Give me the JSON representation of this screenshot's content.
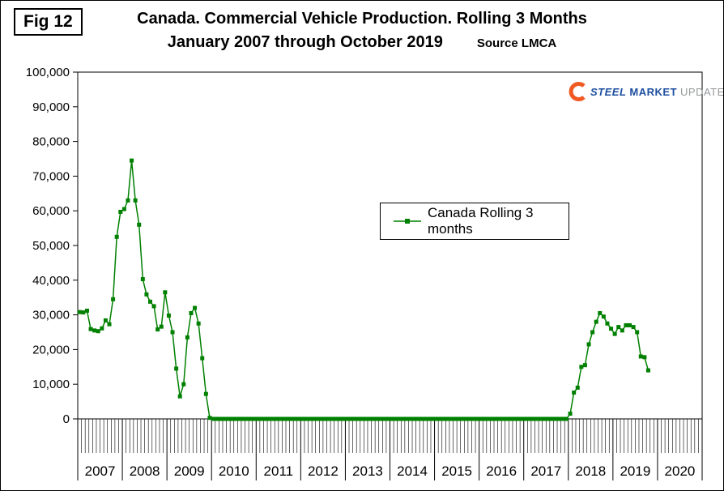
{
  "figure": {
    "label": "Fig 12"
  },
  "title": {
    "line1": "Canada. Commercial Vehicle Production. Rolling 3 Months",
    "line2": "January 2007 through October 2019",
    "source": "Source LMCA"
  },
  "logo": {
    "steel": "STEEL",
    "market": "MARKET",
    "update": "UPDATE",
    "orange": "#f05a22",
    "blue": "#1e4fa0",
    "gray": "#97999b"
  },
  "legend": {
    "label": "Canada Rolling 3 months"
  },
  "chart_data": {
    "type": "line",
    "title": "Canada. Commercial Vehicle Production. Rolling 3 Months January 2007 through October 2019",
    "series_name": "Canada Rolling 3 months",
    "color": "#008000",
    "marker": "square",
    "x_start": "2007-01",
    "x_end": "2019-10",
    "x_years": [
      "2007",
      "2008",
      "2009",
      "2010",
      "2011",
      "2012",
      "2013",
      "2014",
      "2015",
      "2016",
      "2017",
      "2018",
      "2019",
      "2020"
    ],
    "ylim": [
      0,
      100000
    ],
    "ytick_step": 10000,
    "grid": false,
    "legend_position": "center-inside",
    "values": [
      30800,
      30700,
      31200,
      25900,
      25500,
      25300,
      26100,
      28400,
      27300,
      34500,
      52500,
      59700,
      60500,
      63000,
      74500,
      63000,
      56000,
      40300,
      35900,
      33800,
      32500,
      25800,
      26600,
      36500,
      29800,
      25000,
      14500,
      6500,
      10000,
      23500,
      30500,
      32000,
      27500,
      17500,
      7200,
      300,
      0,
      0,
      0,
      0,
      0,
      0,
      0,
      0,
      0,
      0,
      0,
      0,
      0,
      0,
      0,
      0,
      0,
      0,
      0,
      0,
      0,
      0,
      0,
      0,
      0,
      0,
      0,
      0,
      0,
      0,
      0,
      0,
      0,
      0,
      0,
      0,
      0,
      0,
      0,
      0,
      0,
      0,
      0,
      0,
      0,
      0,
      0,
      0,
      0,
      0,
      0,
      0,
      0,
      0,
      0,
      0,
      0,
      0,
      0,
      0,
      0,
      0,
      0,
      0,
      0,
      0,
      0,
      0,
      0,
      0,
      0,
      0,
      0,
      0,
      0,
      0,
      0,
      0,
      0,
      0,
      0,
      0,
      0,
      0,
      0,
      0,
      0,
      0,
      0,
      0,
      0,
      0,
      0,
      0,
      0,
      0,
      1500,
      7600,
      9000,
      15000,
      15500,
      21500,
      25000,
      28000,
      30500,
      29500,
      27500,
      26000,
      24500,
      26500,
      25500,
      27000,
      27000,
      26500,
      25000,
      18000,
      17800,
      14000
    ]
  }
}
